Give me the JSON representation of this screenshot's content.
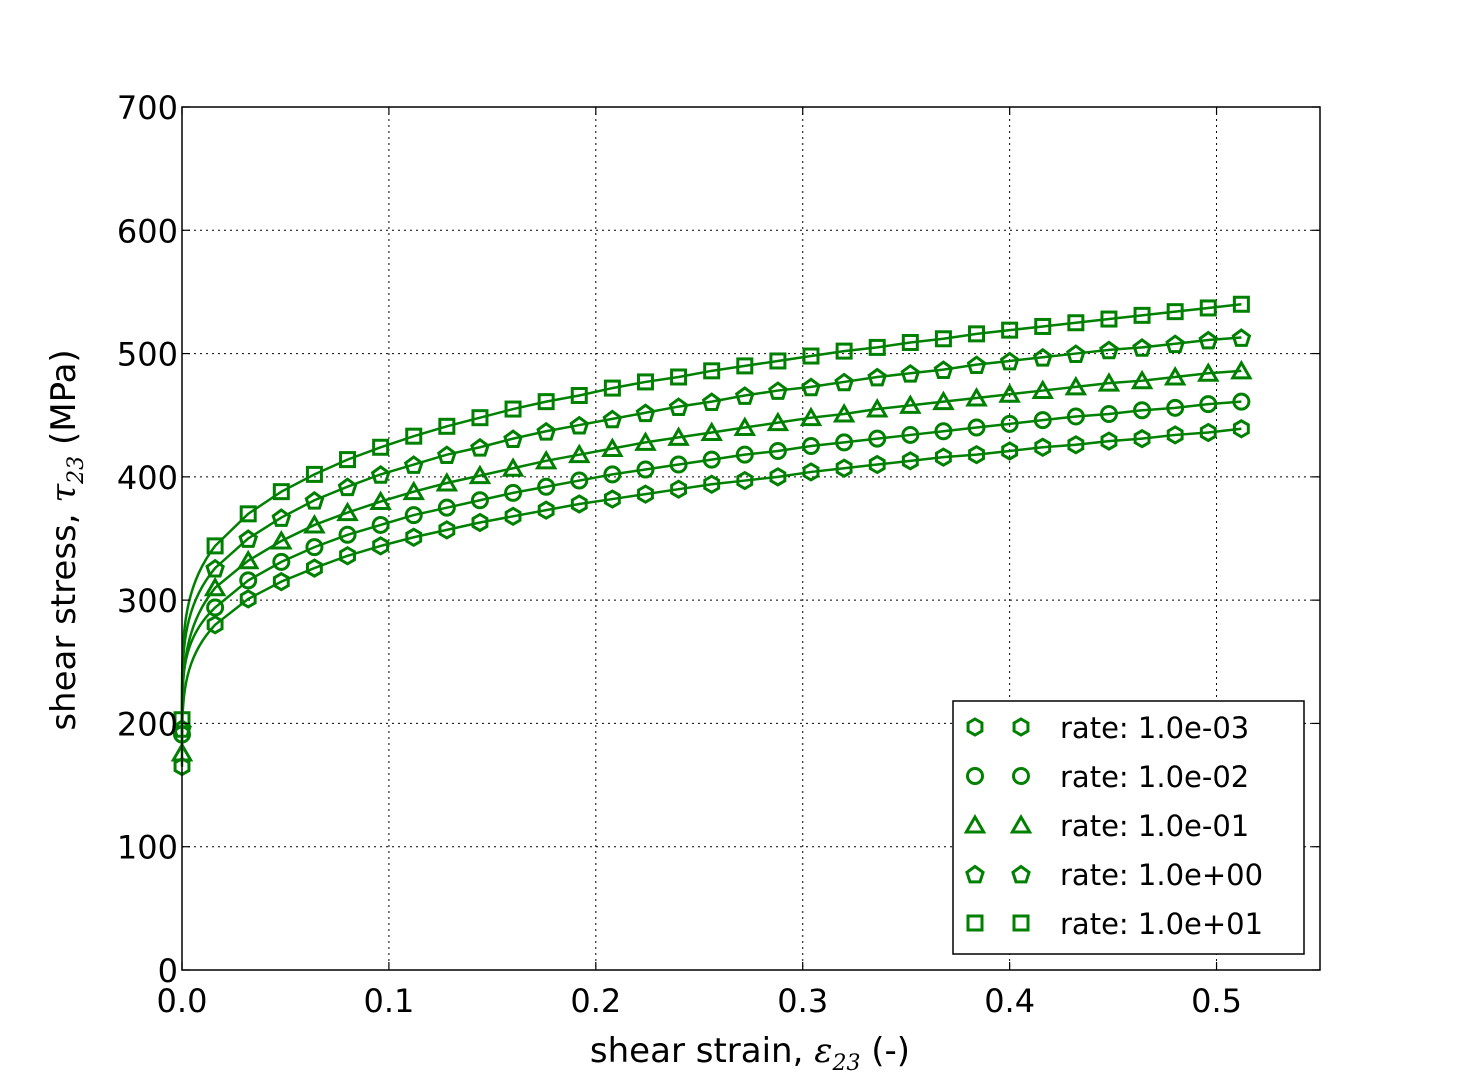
{
  "chart_data": {
    "type": "line",
    "xlabel": {
      "prefix": "shear strain, ",
      "symbol": "ε",
      "sub": "23",
      "suffix": " (-)"
    },
    "ylabel": {
      "prefix": "shear stress, ",
      "symbol": "τ",
      "sub": "23",
      "suffix": " (MPa)"
    },
    "xlim": [
      0.0,
      0.55
    ],
    "ylim": [
      0,
      700
    ],
    "xticks": [
      "0.0",
      "0.1",
      "0.2",
      "0.3",
      "0.4",
      "0.5"
    ],
    "yticks": [
      "0",
      "100",
      "200",
      "300",
      "400",
      "500",
      "600",
      "700"
    ],
    "grid": true,
    "legend_position": "lower-right",
    "color": "#008000",
    "marker_x_start": 0.0,
    "marker_x_step": 0.016,
    "marker_count": 33,
    "series": [
      {
        "name": "rate: 1.0e-03",
        "marker": "hexagon",
        "values": [
          165,
          280,
          301,
          315,
          326,
          336,
          344,
          351,
          357,
          363,
          368,
          373,
          378,
          382,
          386,
          390,
          394,
          397,
          400,
          404,
          407,
          410,
          413,
          416,
          418,
          421,
          424,
          426,
          429,
          431,
          434,
          436,
          439
        ]
      },
      {
        "name": "rate: 1.0e-02",
        "marker": "circle",
        "values": [
          191,
          294,
          316,
          331,
          343,
          353,
          361,
          369,
          375,
          381,
          387,
          392,
          397,
          402,
          406,
          410,
          414,
          418,
          421,
          425,
          428,
          431,
          434,
          437,
          440,
          443,
          446,
          449,
          451,
          454,
          456,
          459,
          461
        ]
      },
      {
        "name": "rate: 1.0e-01",
        "marker": "triangle",
        "values": [
          176,
          310,
          332,
          348,
          361,
          371,
          380,
          388,
          395,
          401,
          407,
          413,
          418,
          423,
          428,
          432,
          436,
          440,
          444,
          448,
          451,
          455,
          458,
          461,
          464,
          467,
          470,
          473,
          476,
          478,
          481,
          484,
          486
        ]
      },
      {
        "name": "rate: 1.0e+00",
        "marker": "pentagon",
        "values": [
          196,
          326,
          350,
          367,
          381,
          392,
          402,
          410,
          418,
          424,
          431,
          437,
          442,
          447,
          452,
          457,
          461,
          466,
          470,
          473,
          477,
          481,
          484,
          487,
          491,
          494,
          497,
          500,
          503,
          505,
          508,
          511,
          513
        ]
      },
      {
        "name": "rate: 1.0e+01",
        "marker": "square",
        "values": [
          203,
          344,
          370,
          388,
          402,
          414,
          424,
          433,
          441,
          448,
          455,
          461,
          466,
          472,
          477,
          481,
          486,
          490,
          494,
          498,
          502,
          505,
          509,
          512,
          516,
          519,
          522,
          525,
          528,
          531,
          534,
          537,
          540
        ]
      }
    ]
  }
}
